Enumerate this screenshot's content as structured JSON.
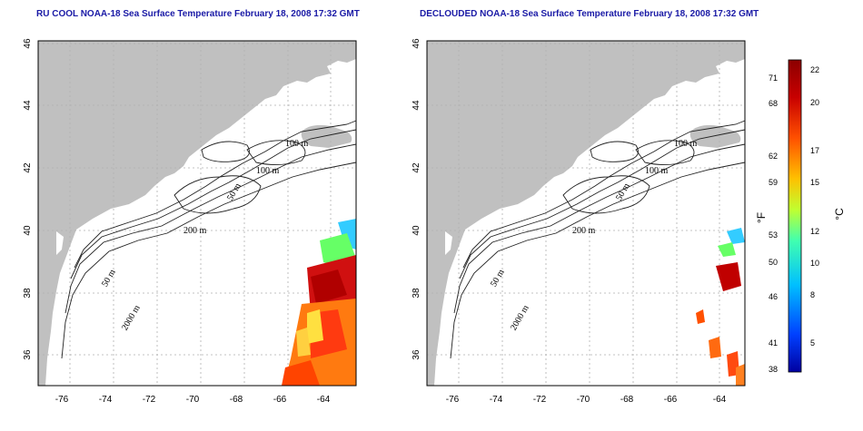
{
  "titles": {
    "left": "RU COOL NOAA-18 Sea Surface Temperature February 18, 2008 17:32 GMT",
    "right": "DECLOUDED NOAA-18 Sea Surface Temperature February 18, 2008 17:32 GMT"
  },
  "map": {
    "lon_ticks": [
      "-76",
      "-74",
      "-72",
      "-70",
      "-68",
      "-66",
      "-64"
    ],
    "lat_ticks": [
      "46",
      "44",
      "42",
      "40",
      "38",
      "36"
    ],
    "contour_labels": [
      "100 m",
      "100 m",
      "50 m",
      "200 m",
      "50 m",
      "2000 m"
    ],
    "colors": {
      "land": "#c0c0c0",
      "ocean": "#ffffff",
      "grid": "#b0b0b0",
      "contour": "#222222"
    }
  },
  "colorbar": {
    "fahrenheit_label": "°F",
    "celsius_label": "°C",
    "fahrenheit_ticks": [
      "71",
      "68",
      "62",
      "59",
      "53",
      "50",
      "46",
      "41",
      "38"
    ],
    "celsius_ticks": [
      "22",
      "20",
      "17",
      "15",
      "12",
      "10",
      "8",
      "5"
    ],
    "range_celsius": [
      3.3,
      23.3
    ],
    "gradient": [
      "#0000a0",
      "#0040ff",
      "#00c0ff",
      "#40ffb0",
      "#c0ff30",
      "#ffc000",
      "#ff5000",
      "#c80000",
      "#8c0000"
    ]
  }
}
